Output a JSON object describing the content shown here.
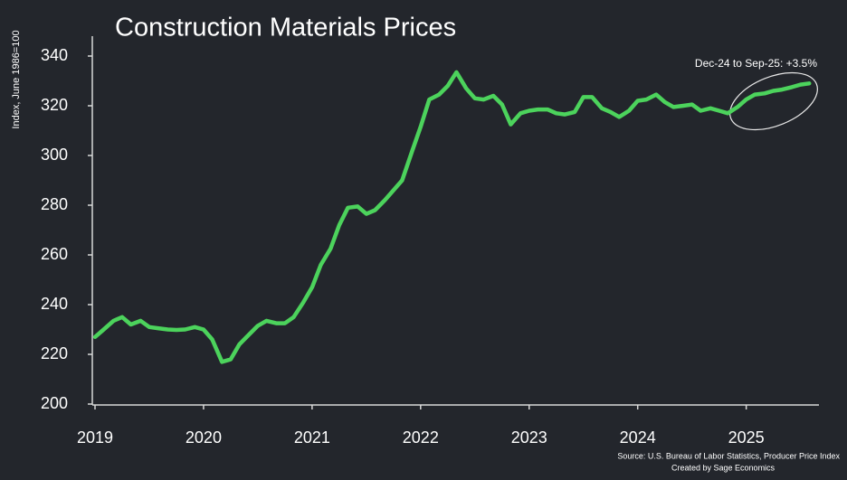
{
  "chart_data": {
    "type": "line",
    "title": "Construction Materials Prices",
    "y_label": "Index, June 1986=100",
    "annotation": "Dec-24 to Sep-25: +3.5%",
    "source": "Source: U.S. Bureau of Labor Statistics, Producer Price Index",
    "credit": "Created by Sage Economics",
    "color": "#4cd35c",
    "xlim": [
      2019,
      2025.67
    ],
    "xticks": [
      2019,
      2020,
      2021,
      2022,
      2023,
      2024,
      2025
    ],
    "ylim": [
      200,
      348
    ],
    "yticks": [
      200,
      220,
      240,
      260,
      280,
      300,
      320,
      340
    ],
    "x": [
      2019,
      2019.08,
      2019.17,
      2019.25,
      2019.33,
      2019.42,
      2019.5,
      2019.58,
      2019.67,
      2019.75,
      2019.83,
      2019.92,
      2020,
      2020.08,
      2020.17,
      2020.25,
      2020.33,
      2020.42,
      2020.5,
      2020.58,
      2020.67,
      2020.75,
      2020.83,
      2020.92,
      2021,
      2021.08,
      2021.17,
      2021.25,
      2021.33,
      2021.42,
      2021.5,
      2021.58,
      2021.67,
      2021.75,
      2021.83,
      2021.92,
      2022,
      2022.08,
      2022.17,
      2022.25,
      2022.33,
      2022.42,
      2022.5,
      2022.58,
      2022.67,
      2022.75,
      2022.83,
      2022.92,
      2023,
      2023.08,
      2023.17,
      2023.25,
      2023.33,
      2023.42,
      2023.5,
      2023.58,
      2023.67,
      2023.75,
      2023.83,
      2023.92,
      2024,
      2024.08,
      2024.17,
      2024.25,
      2024.33,
      2024.42,
      2024.5,
      2024.58,
      2024.67,
      2024.75,
      2024.83,
      2024.92,
      2025,
      2025.08,
      2025.17,
      2025.25,
      2025.33,
      2025.42,
      2025.5,
      2025.58
    ],
    "values": [
      227,
      230,
      233.5,
      235,
      232,
      233.5,
      231,
      230.5,
      230,
      229.8,
      230,
      231,
      230,
      226,
      217,
      218,
      224,
      228,
      231.5,
      233.5,
      232.5,
      232.5,
      235,
      241,
      247,
      256,
      262.5,
      272,
      279,
      279.5,
      276.5,
      278,
      282,
      286,
      290,
      301.5,
      311.5,
      322.5,
      324.5,
      328,
      333.5,
      327,
      323,
      322.5,
      324,
      320.5,
      312.5,
      317,
      318,
      318.5,
      318.5,
      317,
      316.5,
      317.5,
      323.5,
      323.5,
      319,
      317.5,
      315.5,
      318,
      322,
      322.5,
      324.5,
      321.5,
      319.5,
      320,
      320.5,
      318,
      319,
      318,
      317,
      319.5,
      322.5,
      324.5,
      325,
      326,
      326.5,
      327.5,
      328.5,
      329
    ]
  }
}
